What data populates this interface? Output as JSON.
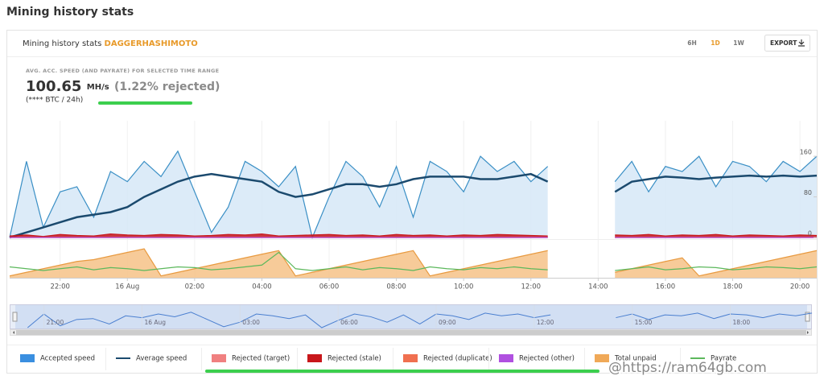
{
  "page_title": "Mining history stats",
  "card": {
    "title": "Mining history stats",
    "algo": "DAGGERHASHIMOTO",
    "ranges": [
      "6H",
      "1D",
      "1W"
    ],
    "active_range": 1,
    "export": "EXPORT"
  },
  "stats": {
    "caption": "AVG. ACC. SPEED (AND PAYRATE) FOR SELECTED TIME RANGE",
    "value": "100.65",
    "unit": "MH/s",
    "rejected": "(1.22% rejected)",
    "btc": "(**** BTC / 24h)"
  },
  "watermark": "@https://ram64gb.com",
  "chart_data": {
    "type": "line",
    "x": [
      20.5,
      21,
      21.5,
      22,
      22.5,
      23,
      23.5,
      24,
      24.5,
      25,
      25.5,
      26,
      26.5,
      27,
      27.5,
      28,
      28.5,
      29,
      29.5,
      30,
      30.5,
      31,
      31.5,
      32,
      32.5,
      33,
      33.5,
      34,
      34.5,
      35,
      35.5,
      36,
      36.5,
      37,
      37.5,
      38,
      38.5,
      39,
      39.5,
      40,
      40.5,
      41,
      41.5,
      42,
      42.5,
      43,
      43.5,
      44,
      44.5
    ],
    "xlim": [
      20.5,
      44.5
    ],
    "xticks": [
      {
        "value": 22,
        "label": "22:00"
      },
      {
        "value": 24,
        "label": "16 Aug"
      },
      {
        "value": 26,
        "label": "02:00"
      },
      {
        "value": 28,
        "label": "04:00"
      },
      {
        "value": 30,
        "label": "06:00"
      },
      {
        "value": 32,
        "label": "08:00"
      },
      {
        "value": 34,
        "label": "10:00"
      },
      {
        "value": 36,
        "label": "12:00"
      },
      {
        "value": 38,
        "label": "14:00"
      },
      {
        "value": 40,
        "label": "16:00"
      },
      {
        "value": 42,
        "label": "18:00"
      },
      {
        "value": 44,
        "label": "20:00"
      }
    ],
    "ylim": [
      0,
      230
    ],
    "yticks": [
      0,
      80,
      160
    ],
    "y2lim": [
      0,
      100
    ],
    "grid": true,
    "series": [
      {
        "name": "Accepted speed",
        "style": "area",
        "color": "#3a8fc5",
        "fill": "#d6e8f7",
        "values": [
          0,
          150,
          20,
          90,
          100,
          40,
          130,
          110,
          150,
          120,
          170,
          90,
          10,
          60,
          150,
          130,
          100,
          140,
          0,
          80,
          150,
          120,
          60,
          140,
          40,
          150,
          130,
          90,
          160,
          130,
          150,
          110,
          140,
          null,
          null,
          null,
          110,
          150,
          90,
          140,
          130,
          160,
          100,
          150,
          140,
          110,
          150,
          130,
          160
        ]
      },
      {
        "name": "Average speed",
        "style": "line",
        "color": "#1b4a6e",
        "values": [
          0,
          10,
          20,
          30,
          40,
          45,
          50,
          60,
          80,
          95,
          110,
          120,
          125,
          120,
          115,
          110,
          90,
          80,
          85,
          95,
          105,
          105,
          100,
          105,
          115,
          120,
          120,
          120,
          115,
          115,
          120,
          125,
          110,
          null,
          null,
          null,
          90,
          110,
          115,
          120,
          118,
          115,
          118,
          120,
          122,
          120,
          122,
          120,
          122
        ]
      },
      {
        "name": "Rejected (target)",
        "style": "area",
        "color": "#f08080",
        "fill": "#f08080",
        "values": [
          0,
          0,
          0,
          0,
          0,
          0,
          0,
          0,
          0,
          0,
          0,
          0,
          0,
          0,
          0,
          0,
          0,
          0,
          0,
          0,
          0,
          0,
          0,
          0,
          0,
          0,
          0,
          0,
          0,
          0,
          0,
          0,
          0,
          null,
          null,
          null,
          0,
          0,
          0,
          0,
          0,
          0,
          0,
          0,
          0,
          0,
          0,
          0,
          0
        ]
      },
      {
        "name": "Rejected (stale)",
        "style": "area",
        "color": "#c8171b",
        "fill": "#c8171b",
        "values": [
          3,
          5,
          2,
          6,
          4,
          3,
          7,
          5,
          4,
          6,
          5,
          3,
          4,
          6,
          5,
          7,
          3,
          4,
          5,
          6,
          4,
          5,
          3,
          6,
          4,
          5,
          3,
          5,
          4,
          6,
          5,
          4,
          3,
          null,
          null,
          null,
          5,
          4,
          6,
          3,
          5,
          4,
          6,
          3,
          5,
          4,
          3,
          5,
          4
        ]
      },
      {
        "name": "Rejected (duplicate)",
        "style": "area",
        "color": "#f07050",
        "fill": "#f07050",
        "values": [
          0,
          0,
          0,
          0,
          0,
          0,
          0,
          0,
          0,
          0,
          0,
          0,
          0,
          0,
          0,
          0,
          0,
          0,
          0,
          0,
          0,
          0,
          0,
          0,
          0,
          0,
          0,
          0,
          0,
          0,
          0,
          0,
          0,
          null,
          null,
          null,
          0,
          0,
          0,
          0,
          0,
          0,
          0,
          0,
          0,
          0,
          0,
          0,
          0
        ]
      },
      {
        "name": "Rejected (other)",
        "style": "area",
        "color": "#b050e0",
        "fill": "#b050e0",
        "values": [
          0,
          0,
          0,
          0,
          0,
          0,
          0,
          0,
          0,
          0,
          0,
          0,
          0,
          0,
          0,
          0,
          0,
          0,
          0,
          0,
          0,
          0,
          0,
          0,
          0,
          0,
          0,
          0,
          0,
          0,
          0,
          0,
          0,
          null,
          null,
          null,
          0,
          0,
          0,
          0,
          0,
          0,
          0,
          0,
          0,
          0,
          0,
          0,
          0
        ]
      },
      {
        "name": "Total unpaid",
        "style": "area",
        "axis": "y2",
        "color": "#e89a40",
        "fill": "#f6c58e",
        "values": [
          5,
          15,
          25,
          35,
          45,
          50,
          60,
          70,
          80,
          5,
          15,
          25,
          35,
          45,
          55,
          65,
          75,
          5,
          15,
          25,
          35,
          45,
          55,
          65,
          75,
          5,
          15,
          25,
          35,
          45,
          55,
          65,
          75,
          null,
          null,
          null,
          15,
          25,
          35,
          45,
          55,
          5,
          15,
          25,
          35,
          45,
          55,
          65,
          75
        ]
      },
      {
        "name": "Payrate",
        "style": "line",
        "axis": "y2",
        "color": "#5cb85c",
        "values": [
          30,
          25,
          20,
          25,
          30,
          22,
          28,
          25,
          20,
          25,
          30,
          28,
          22,
          25,
          30,
          35,
          70,
          25,
          20,
          25,
          30,
          22,
          28,
          25,
          20,
          30,
          25,
          22,
          28,
          25,
          30,
          25,
          22,
          null,
          null,
          null,
          20,
          25,
          30,
          22,
          25,
          30,
          28,
          22,
          25,
          30,
          28,
          25,
          30
        ]
      }
    ]
  },
  "navigator": {
    "xlim": [
      20,
      44.4
    ],
    "ticks": [
      {
        "value": 21,
        "label": "21:00"
      },
      {
        "value": 24,
        "label": "16 Aug"
      },
      {
        "value": 27,
        "label": "03:00"
      },
      {
        "value": 30,
        "label": "06:00"
      },
      {
        "value": 33,
        "label": "09:00"
      },
      {
        "value": 36,
        "label": "12:00"
      },
      {
        "value": 39,
        "label": "15:00"
      },
      {
        "value": 42,
        "label": "18:00"
      }
    ]
  }
}
